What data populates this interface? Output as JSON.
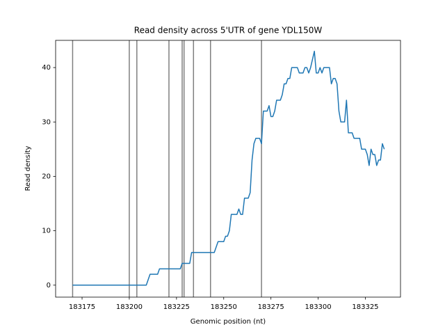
{
  "chart_data": {
    "type": "line",
    "title": "Read density across 5'UTR of gene YDL150W",
    "x_label": "Genomic position (nt)",
    "y_label": "Read density",
    "x": [
      183170,
      183209,
      183211,
      183215,
      183216,
      183227,
      183228,
      183232,
      183233,
      183245,
      183247,
      183250,
      183251,
      183252,
      183253,
      183254,
      183257,
      183258,
      183259,
      183260,
      183261,
      183263,
      183264,
      183265,
      183266,
      183267,
      183269,
      183270,
      183271,
      183273,
      183274,
      183275,
      183276,
      183277,
      183278,
      183280,
      183281,
      183282,
      183283,
      183284,
      183285,
      183286,
      183289,
      183290,
      183292,
      183293,
      183294,
      183295,
      183296,
      183298,
      183299,
      183300,
      183301,
      183302,
      183303,
      183306,
      183307,
      183308,
      183309,
      183310,
      183311,
      183312,
      183314,
      183315,
      183316,
      183318,
      183319,
      183322,
      183323,
      183325,
      183326,
      183327,
      183328,
      183329,
      183330,
      183331,
      183332,
      183333,
      183334,
      183335
    ],
    "series": [
      {
        "color": "#1f77b4",
        "values": [
          0,
          0,
          2,
          2,
          3,
          3,
          4,
          4,
          6,
          6,
          8,
          8,
          9,
          9,
          10,
          13,
          13,
          14,
          13,
          13,
          16,
          16,
          17,
          23,
          26,
          27,
          27,
          26,
          32,
          32,
          33,
          31,
          31,
          32,
          34,
          34,
          35,
          37,
          37,
          38,
          38,
          40,
          40,
          39,
          39,
          40,
          40,
          39,
          40,
          43,
          39,
          39,
          40,
          39,
          40,
          40,
          37,
          38,
          38,
          37,
          32,
          30,
          30,
          34,
          28,
          28,
          27,
          27,
          25,
          25,
          24,
          22,
          25,
          24,
          24,
          22,
          23,
          23,
          26,
          25
        ]
      }
    ],
    "vlines": [
      183170,
      183200,
      183204,
      183221,
      183228,
      183229,
      183234,
      183243,
      183270
    ],
    "vline_color": "#7f7f7f",
    "xlim": [
      183161,
      183343.6
    ],
    "ylim": [
      -2.2,
      45
    ],
    "xticks": [
      183175,
      183200,
      183225,
      183250,
      183275,
      183300,
      183325
    ],
    "yticks": [
      0,
      10,
      20,
      30,
      40
    ]
  }
}
